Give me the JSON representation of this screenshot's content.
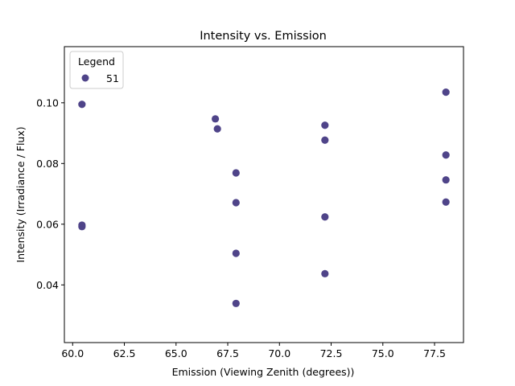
{
  "chart_data": {
    "type": "scatter",
    "title": "Intensity vs. Emission",
    "xlabel": "Emission (Viewing Zenith (degrees))",
    "ylabel": "Intensity (Irradiance / Flux)",
    "xlim": [
      59.6,
      78.9
    ],
    "ylim": [
      0.021,
      0.1185
    ],
    "xticks": [
      "60.0",
      "62.5",
      "65.0",
      "67.5",
      "70.0",
      "72.5",
      "75.0",
      "77.5"
    ],
    "xtick_values": [
      60.0,
      62.5,
      65.0,
      67.5,
      70.0,
      72.5,
      75.0,
      77.5
    ],
    "yticks": [
      "0.04",
      "0.06",
      "0.08",
      "0.10"
    ],
    "ytick_values": [
      0.04,
      0.06,
      0.08,
      0.1
    ],
    "grid": false,
    "legend": {
      "title": "Legend",
      "placement": "top-left"
    },
    "series": [
      {
        "name": "51",
        "color": "#4f4489",
        "points": [
          {
            "x": 60.45,
            "y": 0.0995
          },
          {
            "x": 60.45,
            "y": 0.0597
          },
          {
            "x": 60.45,
            "y": 0.0592
          },
          {
            "x": 66.9,
            "y": 0.0947
          },
          {
            "x": 67.0,
            "y": 0.0914
          },
          {
            "x": 67.9,
            "y": 0.0769
          },
          {
            "x": 67.9,
            "y": 0.0671
          },
          {
            "x": 67.9,
            "y": 0.0504
          },
          {
            "x": 67.9,
            "y": 0.0339
          },
          {
            "x": 72.2,
            "y": 0.0926
          },
          {
            "x": 72.2,
            "y": 0.0877
          },
          {
            "x": 72.2,
            "y": 0.0624
          },
          {
            "x": 72.2,
            "y": 0.0437
          },
          {
            "x": 78.05,
            "y": 0.1035
          },
          {
            "x": 78.05,
            "y": 0.0828
          },
          {
            "x": 78.05,
            "y": 0.0746
          },
          {
            "x": 78.05,
            "y": 0.0673
          }
        ]
      }
    ]
  }
}
